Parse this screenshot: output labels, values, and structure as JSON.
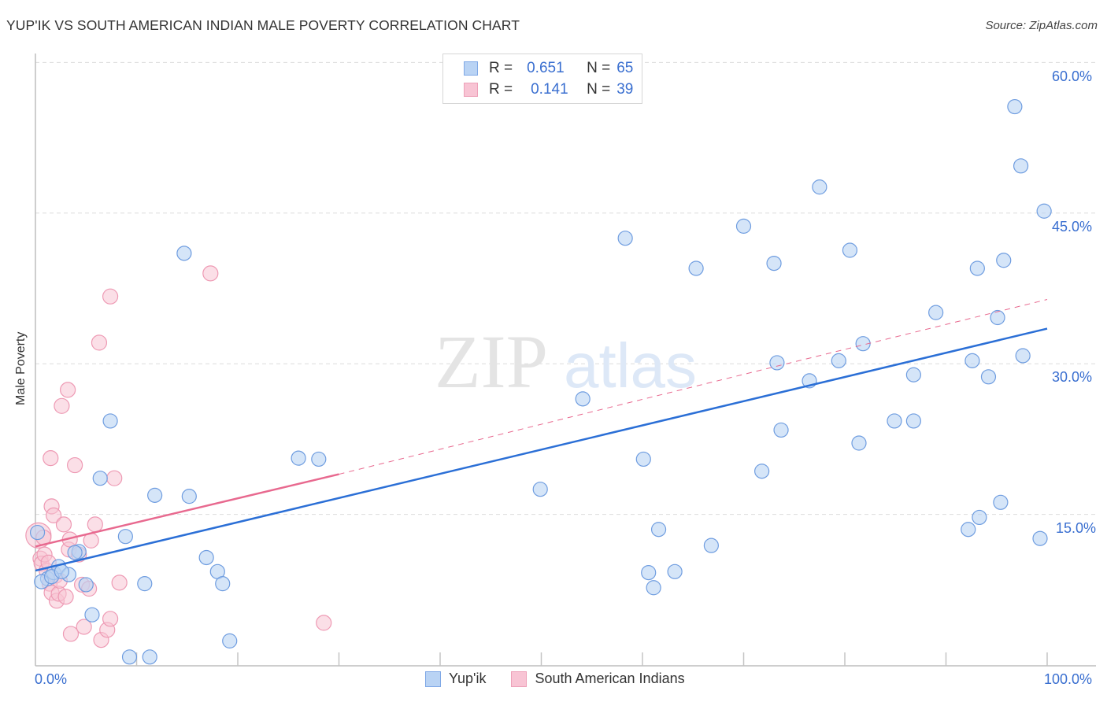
{
  "header": {
    "title": "YUP'IK VS SOUTH AMERICAN INDIAN MALE POVERTY CORRELATION CHART",
    "source": "Source: ZipAtlas.com"
  },
  "legend_top": {
    "rows": [
      {
        "r_label": "R =",
        "r_value": "0.651",
        "n_label": "N =",
        "n_value": "65"
      },
      {
        "r_label": "R =",
        "r_value": "0.141",
        "n_label": "N =",
        "n_value": "39"
      }
    ]
  },
  "axes": {
    "ylabel": "Male Poverty",
    "x_min_label": "0.0%",
    "x_max_label": "100.0%",
    "y_ticks": [
      "15.0%",
      "30.0%",
      "45.0%",
      "60.0%"
    ]
  },
  "legend_bottom": {
    "items": [
      "Yup'ik",
      "South American Indians"
    ]
  },
  "watermark": {
    "zip": "ZIP",
    "atlas": "atlas"
  },
  "colors": {
    "blue": "#3a74d4",
    "blue_fill": "#b9d3f4",
    "pink": "#e8698f",
    "pink_fill": "#f8c4d4",
    "tick_text": "#3a6fd0"
  },
  "chart_data": {
    "type": "scatter",
    "title": "YUP'IK VS SOUTH AMERICAN INDIAN MALE POVERTY CORRELATION CHART",
    "xlabel": "",
    "ylabel": "Male Poverty",
    "xlim": [
      0,
      100
    ],
    "ylim": [
      0,
      60
    ],
    "x_ticks": [
      "0.0%",
      "100.0%"
    ],
    "y_ticks": [
      15,
      30,
      45,
      60
    ],
    "grid": true,
    "legend_position": "top-center",
    "series": [
      {
        "name": "Yup'ik",
        "R": 0.651,
        "N": 65,
        "color": "#3a74d4",
        "trend": {
          "x": [
            0,
            100
          ],
          "y": [
            9.4,
            33.5
          ]
        },
        "points": [
          [
            0.2,
            13.2
          ],
          [
            1.2,
            8.6
          ],
          [
            1.8,
            9.2
          ],
          [
            2.3,
            9.8
          ],
          [
            3.3,
            9.0
          ],
          [
            4.3,
            11.3
          ],
          [
            5.0,
            8.0
          ],
          [
            5.6,
            5.0
          ],
          [
            6.4,
            18.6
          ],
          [
            7.4,
            24.3
          ],
          [
            8.9,
            12.8
          ],
          [
            9.3,
            0.8
          ],
          [
            10.8,
            8.1
          ],
          [
            11.8,
            16.9
          ],
          [
            11.3,
            0.8
          ],
          [
            14.7,
            41.0
          ],
          [
            15.2,
            16.8
          ],
          [
            16.9,
            10.7
          ],
          [
            18.0,
            9.3
          ],
          [
            18.5,
            8.1
          ],
          [
            19.2,
            2.4
          ],
          [
            26.0,
            20.6
          ],
          [
            28.0,
            20.5
          ],
          [
            49.9,
            17.5
          ],
          [
            54.1,
            26.5
          ],
          [
            58.3,
            42.5
          ],
          [
            60.1,
            20.5
          ],
          [
            61.1,
            7.7
          ],
          [
            61.6,
            13.5
          ],
          [
            60.6,
            9.2
          ],
          [
            63.2,
            9.3
          ],
          [
            65.3,
            39.5
          ],
          [
            66.8,
            11.9
          ],
          [
            70.0,
            43.7
          ],
          [
            71.8,
            19.3
          ],
          [
            73.0,
            40.0
          ],
          [
            73.7,
            23.4
          ],
          [
            73.3,
            30.1
          ],
          [
            76.5,
            28.3
          ],
          [
            77.5,
            47.6
          ],
          [
            79.4,
            30.3
          ],
          [
            80.5,
            41.3
          ],
          [
            81.4,
            22.1
          ],
          [
            81.8,
            32.0
          ],
          [
            84.9,
            24.3
          ],
          [
            86.8,
            24.3
          ],
          [
            86.8,
            28.9
          ],
          [
            89.0,
            35.1
          ],
          [
            92.2,
            13.5
          ],
          [
            92.6,
            30.3
          ],
          [
            93.1,
            39.5
          ],
          [
            93.3,
            14.7
          ],
          [
            94.2,
            28.7
          ],
          [
            95.1,
            34.6
          ],
          [
            95.4,
            16.2
          ],
          [
            95.7,
            40.3
          ],
          [
            96.8,
            55.6
          ],
          [
            97.4,
            49.7
          ],
          [
            97.6,
            30.8
          ],
          [
            99.3,
            12.6
          ],
          [
            99.7,
            45.2
          ],
          [
            0.6,
            8.3
          ],
          [
            1.6,
            8.8
          ],
          [
            2.6,
            9.3
          ],
          [
            3.9,
            11.2
          ]
        ]
      },
      {
        "name": "South American Indians",
        "R": 0.141,
        "N": 39,
        "color": "#e8698f",
        "trend_solid": {
          "x": [
            0,
            30
          ],
          "y": [
            11.8,
            19.0
          ]
        },
        "trend_dashed": {
          "x": [
            30,
            100
          ],
          "y": [
            19.0,
            36.4
          ]
        },
        "points": [
          [
            0.3,
            12.9
          ],
          [
            0.5,
            10.6
          ],
          [
            0.6,
            10.1
          ],
          [
            0.9,
            11.0
          ],
          [
            1.1,
            9.4
          ],
          [
            1.3,
            10.2
          ],
          [
            1.4,
            8.1
          ],
          [
            1.6,
            7.2
          ],
          [
            1.5,
            20.6
          ],
          [
            1.6,
            15.8
          ],
          [
            1.8,
            14.9
          ],
          [
            2.0,
            8.9
          ],
          [
            2.1,
            6.4
          ],
          [
            2.3,
            7.1
          ],
          [
            2.4,
            8.4
          ],
          [
            2.6,
            25.8
          ],
          [
            2.8,
            14.0
          ],
          [
            3.0,
            6.8
          ],
          [
            3.2,
            27.4
          ],
          [
            3.3,
            11.5
          ],
          [
            3.4,
            12.5
          ],
          [
            3.5,
            3.1
          ],
          [
            3.9,
            19.9
          ],
          [
            4.3,
            11.0
          ],
          [
            4.6,
            8.0
          ],
          [
            4.8,
            3.8
          ],
          [
            5.3,
            7.6
          ],
          [
            5.5,
            12.4
          ],
          [
            5.9,
            14.0
          ],
          [
            6.3,
            32.1
          ],
          [
            6.5,
            2.5
          ],
          [
            7.1,
            3.5
          ],
          [
            7.4,
            36.7
          ],
          [
            7.4,
            4.6
          ],
          [
            7.8,
            18.6
          ],
          [
            8.3,
            8.2
          ],
          [
            17.3,
            39.0
          ],
          [
            28.5,
            4.2
          ],
          [
            0.8,
            12.7
          ]
        ]
      }
    ]
  }
}
